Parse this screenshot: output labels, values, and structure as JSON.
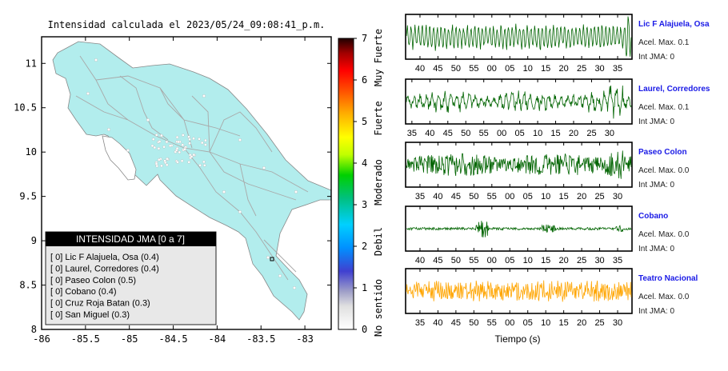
{
  "map": {
    "title": "Intensidad calculada el 2023/05/24_09:08:41_p.m.",
    "lon_ticks": [
      "-86",
      "-85.5",
      "-85",
      "-84.5",
      "-84",
      "-83.5",
      "-83"
    ],
    "lon_values": [
      -86,
      -85.5,
      -85,
      -84.5,
      -84,
      -83.5,
      -83
    ],
    "lat_ticks": [
      "11",
      "10.5",
      "10",
      "9.5",
      "9",
      "8.5",
      "8"
    ],
    "lat_values": [
      11,
      10.5,
      10,
      9.5,
      9,
      8.5,
      8
    ],
    "xlim": [
      -86,
      -82.7
    ],
    "ylim": [
      8,
      11.3
    ],
    "land_color": "#b2eded",
    "legend": {
      "title": "INTENSIDAD JMA [0 a 7]",
      "items": [
        "[ 0]  Lic F Alajuela, Osa (0.4)",
        "[ 0]  Laurel, Corredores (0.4)",
        "[ 0]  Paseo Colon (0.5)",
        "[ 0]  Cobano (0.4)",
        "[ 0]  Cruz Roja Batan (0.3)",
        "[ 0]  San Miguel (0.3)"
      ]
    }
  },
  "colorbar": {
    "ticks": [
      "0",
      "1",
      "2",
      "3",
      "4",
      "5",
      "6",
      "7"
    ],
    "range": [
      0,
      7
    ],
    "categories": [
      "No sentido",
      "Debil",
      "Moderado",
      "Fuerte",
      "Muy Fuerte"
    ]
  },
  "chart_data": [
    {
      "type": "line",
      "name": "Lic F Alajuela, Osa",
      "x_ticks": [
        "40",
        "45",
        "50",
        "55",
        "00",
        "05",
        "10",
        "15",
        "20",
        "25",
        "30",
        "35"
      ],
      "color": "#006400",
      "accel_label": "Acel. Max. 0.1",
      "jma_label": "Int JMA: 0",
      "ylim": [
        -1,
        1
      ],
      "x_ticks_start": 38.5,
      "style": "uniform"
    },
    {
      "type": "line",
      "name": "Laurel, Corredores",
      "x_ticks": [
        "35",
        "40",
        "45",
        "50",
        "55",
        "00",
        "05",
        "10",
        "15",
        "20",
        "25",
        "30"
      ],
      "color": "#006400",
      "accel_label": "Acel. Max. 0.1",
      "jma_label": "Int JMA: 0",
      "ylim": [
        -1,
        1
      ],
      "x_ticks_start": 35,
      "style": "irregular"
    },
    {
      "type": "line",
      "name": "Paseo Colon",
      "x_ticks": [
        "35",
        "40",
        "45",
        "50",
        "55",
        "00",
        "05",
        "10",
        "15",
        "20",
        "25",
        "30"
      ],
      "color": "#006400",
      "accel_label": "Acel. Max. 0.0",
      "jma_label": "Int JMA: 0",
      "ylim": [
        -1,
        1
      ],
      "x_ticks_start": 34.5,
      "style": "dense"
    },
    {
      "type": "line",
      "name": "Cobano",
      "x_ticks": [
        "40",
        "45",
        "50",
        "55",
        "00",
        "05",
        "10",
        "15",
        "20",
        "25",
        "30",
        "35"
      ],
      "color": "#006400",
      "accel_label": "Acel. Max. 0.0",
      "jma_label": "Int JMA: 0",
      "ylim": [
        -1,
        1
      ],
      "x_ticks_start": 39,
      "style": "burst"
    },
    {
      "type": "line",
      "name": "Teatro Nacional",
      "x_ticks": [
        "35",
        "40",
        "45",
        "50",
        "55",
        "00",
        "05",
        "10",
        "15",
        "20",
        "25",
        "30"
      ],
      "color": "#ffa500",
      "accel_label": "Acel. Max. 0.0",
      "jma_label": "Int JMA: 0",
      "ylim": [
        -1,
        1
      ],
      "x_ticks_start": 34,
      "style": "noise"
    }
  ],
  "seismo_xlabel": "Tiempo (s)"
}
